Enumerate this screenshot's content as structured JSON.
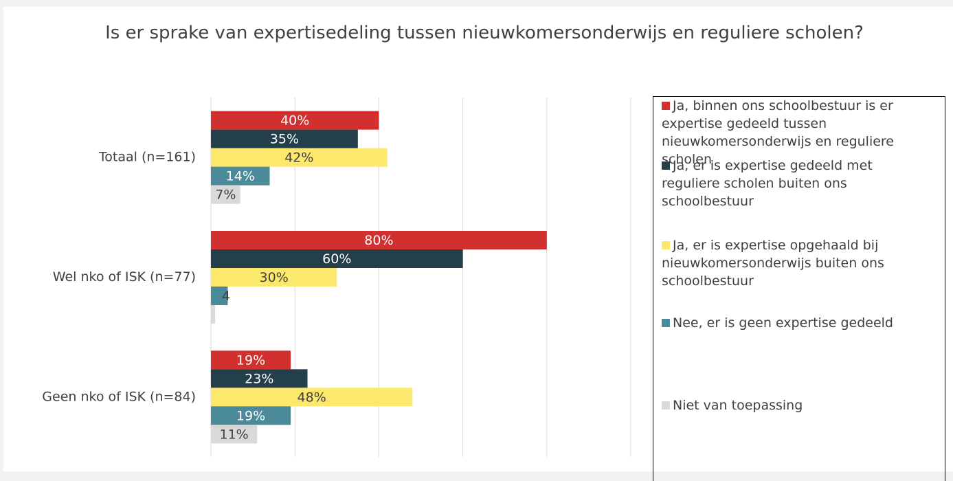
{
  "chart_data": {
    "type": "bar",
    "orientation": "horizontal",
    "title": "Is er sprake van expertisedeling tussen nieuwkomersonderwijs en reguliere scholen?",
    "categories": [
      "Totaal (n=161)",
      "Wel nko of ISK (n=77)",
      "Geen nko of ISK (n=84)"
    ],
    "series": [
      {
        "name": "Ja, binnen ons schoolbestuur is er expertise gedeeld tussen nieuwkomersonderwijs en reguliere scholen",
        "color": "#d22f2f",
        "label_color": "#ffffff",
        "values": [
          40,
          80,
          19
        ],
        "value_labels": [
          "40%",
          "80%",
          "19%"
        ]
      },
      {
        "name": "Ja, er is expertise gedeeld met reguliere scholen buiten ons schoolbestuur",
        "color": "#23404a",
        "label_color": "#ffffff",
        "values": [
          35,
          60,
          23
        ],
        "value_labels": [
          "35%",
          "60%",
          "23%"
        ]
      },
      {
        "name": "Ja, er is expertise opgehaald bij nieuwkomersonderwijs buiten ons schoolbestuur",
        "color": "#fbe86c",
        "label_color": "#404040",
        "values": [
          42,
          30,
          48
        ],
        "value_labels": [
          "42%",
          "30%",
          "48%"
        ]
      },
      {
        "name": "Nee, er is geen expertise gedeeld",
        "color": "#4a8a99",
        "label_color": "#ffffff",
        "values": [
          14,
          4,
          19
        ],
        "value_labels": [
          "14%",
          "4",
          "19%"
        ]
      },
      {
        "name": "Niet van toepassing",
        "color": "#d9d9d9",
        "label_color": "#404040",
        "values": [
          7,
          1,
          11
        ],
        "value_labels": [
          "7%",
          "1%",
          "11%"
        ]
      }
    ],
    "xlim": [
      0,
      100
    ],
    "xticks": [
      0,
      20,
      40,
      60,
      80,
      100
    ],
    "grid": true,
    "legend": "right"
  }
}
